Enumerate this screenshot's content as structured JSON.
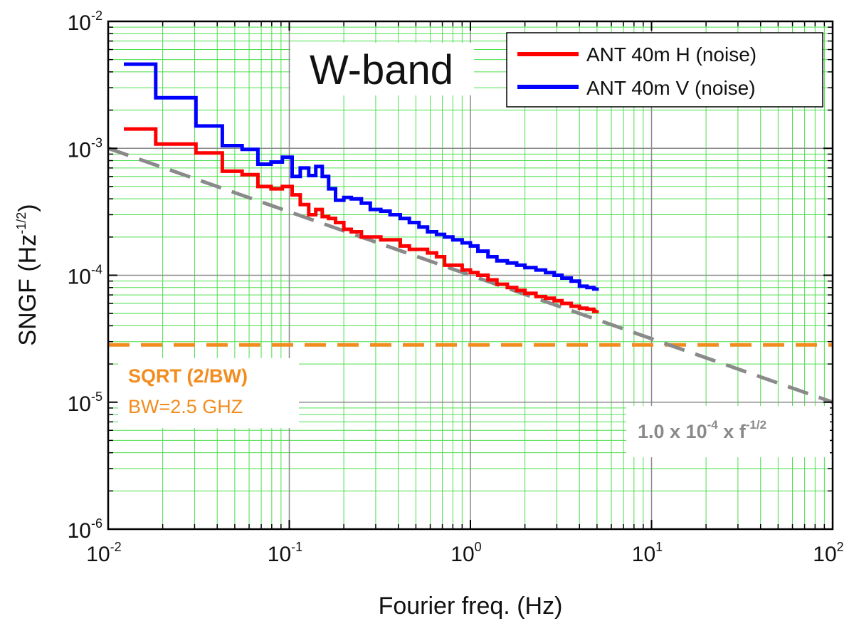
{
  "chart_data": {
    "type": "line",
    "title": "W-band",
    "xlabel": "Fourier freq. (Hz)",
    "ylabel_main": "SNGF (Hz",
    "ylabel_exp": "-1/2",
    "ylabel_close": ")",
    "x_scale": "log",
    "y_scale": "log",
    "xlim": [
      0.01,
      100
    ],
    "ylim": [
      1e-06,
      0.01
    ],
    "x_ticks": [
      {
        "base": "10",
        "exp": "-2",
        "value": 0.01
      },
      {
        "base": "10",
        "exp": "-1",
        "value": 0.1
      },
      {
        "base": "10",
        "exp": "0",
        "value": 1
      },
      {
        "base": "10",
        "exp": "1",
        "value": 10
      },
      {
        "base": "10",
        "exp": "2",
        "value": 100
      }
    ],
    "y_ticks": [
      {
        "base": "10",
        "exp": "-6",
        "value": 1e-06
      },
      {
        "base": "10",
        "exp": "-5",
        "value": 1e-05
      },
      {
        "base": "10",
        "exp": "-4",
        "value": 0.0001
      },
      {
        "base": "10",
        "exp": "-3",
        "value": 0.001
      },
      {
        "base": "10",
        "exp": "-2",
        "value": 0.01
      }
    ],
    "grid": true,
    "legend_position": "top-right",
    "series": [
      {
        "name": "ANT 40m H (noise)",
        "color": "#ff0000",
        "x": [
          0.0122,
          0.0183,
          0.0305,
          0.0427,
          0.0549,
          0.0671,
          0.0793,
          0.0915,
          0.1037,
          0.115,
          0.128,
          0.14,
          0.152,
          0.165,
          0.18,
          0.2,
          0.22,
          0.25,
          0.28,
          0.32,
          0.36,
          0.41,
          0.46,
          0.52,
          0.58,
          0.65,
          0.72,
          0.8,
          0.9,
          1.0,
          1.1,
          1.25,
          1.4,
          1.6,
          1.8,
          2.0,
          2.3,
          2.6,
          2.9,
          3.2,
          3.6,
          4.0,
          4.4,
          4.8,
          5.0
        ],
        "y": [
          0.00142,
          0.00108,
          0.00092,
          0.00066,
          0.00062,
          0.0005,
          0.00048,
          0.0005,
          0.00043,
          0.00036,
          0.0003,
          0.00033,
          0.00029,
          0.00028,
          0.00026,
          0.00023,
          0.00022,
          0.0002,
          0.0002,
          0.00019,
          0.00019,
          0.00017,
          0.00016,
          0.00016,
          0.00015,
          0.00014,
          0.00012,
          0.00012,
          0.00011,
          0.000105,
          0.0001,
          9.2e-05,
          8.5e-05,
          8e-05,
          7.6e-05,
          7.2e-05,
          6.8e-05,
          6.6e-05,
          6.3e-05,
          6e-05,
          5.7e-05,
          5.5e-05,
          5.4e-05,
          5.2e-05,
          5.3e-05
        ]
      },
      {
        "name": "ANT 40m V (noise)",
        "color": "#0000ff",
        "x": [
          0.0122,
          0.0183,
          0.0305,
          0.0427,
          0.0549,
          0.0671,
          0.0793,
          0.0915,
          0.1037,
          0.115,
          0.128,
          0.14,
          0.152,
          0.165,
          0.18,
          0.2,
          0.22,
          0.25,
          0.28,
          0.32,
          0.36,
          0.41,
          0.46,
          0.52,
          0.58,
          0.65,
          0.72,
          0.8,
          0.9,
          1.0,
          1.1,
          1.25,
          1.4,
          1.6,
          1.8,
          2.0,
          2.3,
          2.6,
          2.9,
          3.2,
          3.6,
          4.0,
          4.4,
          4.8,
          5.0
        ],
        "y": [
          0.0046,
          0.0025,
          0.0015,
          0.00105,
          0.00098,
          0.00075,
          0.00078,
          0.00085,
          0.0006,
          0.0007,
          0.00061,
          0.00072,
          0.0006,
          0.00048,
          0.00039,
          0.00041,
          0.0004,
          0.00037,
          0.00033,
          0.00032,
          0.0003,
          0.00028,
          0.00026,
          0.00024,
          0.00022,
          0.00021,
          0.0002,
          0.00019,
          0.00018,
          0.00017,
          0.000155,
          0.00014,
          0.00013,
          0.000125,
          0.00012,
          0.000115,
          0.00011,
          0.000105,
          0.0001,
          9.5e-05,
          9e-05,
          8.2e-05,
          8e-05,
          7.8e-05,
          8e-05
        ]
      }
    ],
    "reference_lines": [
      {
        "name": "sqrt(2/BW)",
        "color": "#f28c1e",
        "style": "dashed",
        "y": 2.83e-05
      },
      {
        "name": "fit",
        "color": "#8a8a8a",
        "style": "dashed",
        "coefficient": 0.0001,
        "exponent": -0.5,
        "x_range": [
          0.01,
          100
        ]
      }
    ],
    "annotations": {
      "sqrt_label": "SQRT (2/BW)",
      "bw_label": "BW=2.5 GHZ",
      "fit_prefix": "1.0 x 10",
      "fit_exp1": "-4",
      "fit_mid": " x f",
      "fit_exp2": "-1/2"
    }
  }
}
